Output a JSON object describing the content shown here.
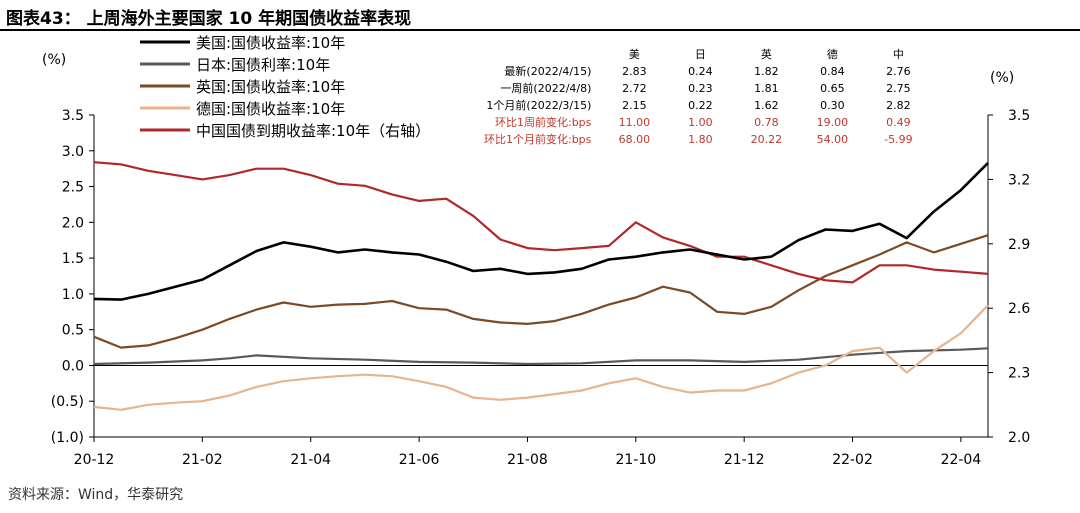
{
  "title": "图表43：  上周海外主要国家 10 年期国债收益率表现",
  "source": "资料来源：Wind，华泰研究",
  "colors": {
    "us": "#000000",
    "jp": "#595959",
    "uk": "#7b4a26",
    "de": "#e8b48d",
    "cn": "#b0282a"
  },
  "table": {
    "headers": [
      "",
      "美",
      "日",
      "英",
      "德",
      "中"
    ],
    "rows": [
      {
        "label": "最新(2022/4/15)",
        "values": [
          "2.83",
          "0.24",
          "1.82",
          "0.84",
          "2.76"
        ],
        "red": false
      },
      {
        "label": "一周前(2022/4/8)",
        "values": [
          "2.72",
          "0.23",
          "1.81",
          "0.65",
          "2.75"
        ],
        "red": false
      },
      {
        "label": "1个月前(2022/3/15)",
        "values": [
          "2.15",
          "0.22",
          "1.62",
          "0.30",
          "2.82"
        ],
        "red": false
      },
      {
        "label": "环比1周前变化:bps",
        "values": [
          "11.00",
          "1.00",
          "0.78",
          "19.00",
          "0.49"
        ],
        "red": true
      },
      {
        "label": "环比1个月前变化:bps",
        "values": [
          "68.00",
          "1.80",
          "20.22",
          "54.00",
          "-5.99"
        ],
        "red": true
      }
    ]
  },
  "chart_data": {
    "type": "line",
    "left_axis": {
      "unit_label": "(%)",
      "ticks": [
        "3.5",
        "3.0",
        "2.5",
        "2.0",
        "1.5",
        "1.0",
        "0.5",
        "0.0",
        "(0.5)",
        "(1.0)"
      ],
      "ylim": [
        -1.0,
        3.5
      ]
    },
    "right_axis": {
      "unit_label": "(%)",
      "ticks": [
        "3.5",
        "3.2",
        "2.9",
        "2.6",
        "2.3",
        "2.0"
      ],
      "ylim": [
        2.0,
        3.5
      ]
    },
    "x_ticks": [
      "20-12",
      "21-02",
      "21-04",
      "21-06",
      "21-08",
      "21-10",
      "21-12",
      "22-02",
      "22-04"
    ],
    "x_range": [
      0,
      16.5
    ],
    "series": [
      {
        "name": "美国:国债收益率:10年",
        "key": "us",
        "axis": "left",
        "x": [
          0,
          0.5,
          1,
          1.5,
          2,
          2.5,
          3,
          3.5,
          4,
          4.5,
          5,
          5.5,
          6,
          6.5,
          7,
          7.5,
          8,
          8.5,
          9,
          9.5,
          10,
          10.5,
          11,
          11.5,
          12,
          12.5,
          13,
          13.5,
          14,
          14.5,
          15,
          15.5,
          16,
          16.5
        ],
        "values": [
          0.93,
          0.92,
          1.0,
          1.1,
          1.2,
          1.4,
          1.6,
          1.72,
          1.66,
          1.58,
          1.62,
          1.58,
          1.55,
          1.45,
          1.32,
          1.35,
          1.28,
          1.3,
          1.35,
          1.48,
          1.52,
          1.58,
          1.62,
          1.55,
          1.48,
          1.52,
          1.75,
          1.9,
          1.88,
          1.98,
          1.78,
          2.15,
          2.45,
          2.83
        ]
      },
      {
        "name": "日本:国债利率:10年",
        "key": "jp",
        "axis": "left",
        "x": [
          0,
          1,
          2,
          2.5,
          3,
          4,
          5,
          6,
          7,
          8,
          9,
          10,
          11,
          12,
          13,
          14,
          15,
          16,
          16.5
        ],
        "values": [
          0.02,
          0.04,
          0.07,
          0.1,
          0.14,
          0.1,
          0.08,
          0.05,
          0.04,
          0.02,
          0.03,
          0.07,
          0.07,
          0.05,
          0.08,
          0.15,
          0.2,
          0.22,
          0.24
        ]
      },
      {
        "name": "英国:国债收益率:10年",
        "key": "uk",
        "axis": "left",
        "x": [
          0,
          0.5,
          1,
          1.5,
          2,
          2.5,
          3,
          3.5,
          4,
          4.5,
          5,
          5.5,
          6,
          6.5,
          7,
          7.5,
          8,
          8.5,
          9,
          9.5,
          10,
          10.5,
          11,
          11.5,
          12,
          12.5,
          13,
          13.5,
          14,
          14.5,
          15,
          15.5,
          16,
          16.5
        ],
        "values": [
          0.4,
          0.25,
          0.28,
          0.38,
          0.5,
          0.65,
          0.78,
          0.88,
          0.82,
          0.85,
          0.86,
          0.9,
          0.8,
          0.78,
          0.65,
          0.6,
          0.58,
          0.62,
          0.72,
          0.85,
          0.95,
          1.1,
          1.02,
          0.75,
          0.72,
          0.82,
          1.05,
          1.25,
          1.4,
          1.55,
          1.72,
          1.58,
          1.7,
          1.82
        ]
      },
      {
        "name": "德国:国债收益率:10年",
        "key": "de",
        "axis": "left",
        "x": [
          0,
          0.5,
          1,
          1.5,
          2,
          2.5,
          3,
          3.5,
          4,
          4.5,
          5,
          5.5,
          6,
          6.5,
          7,
          7.5,
          8,
          8.5,
          9,
          9.5,
          10,
          10.5,
          11,
          11.5,
          12,
          12.5,
          13,
          13.5,
          14,
          14.5,
          15,
          15.5,
          16,
          16.5
        ],
        "values": [
          -0.58,
          -0.62,
          -0.55,
          -0.52,
          -0.5,
          -0.42,
          -0.3,
          -0.22,
          -0.18,
          -0.15,
          -0.13,
          -0.15,
          -0.22,
          -0.3,
          -0.45,
          -0.48,
          -0.45,
          -0.4,
          -0.35,
          -0.25,
          -0.18,
          -0.3,
          -0.38,
          -0.35,
          -0.35,
          -0.25,
          -0.1,
          0.0,
          0.2,
          0.25,
          -0.1,
          0.2,
          0.45,
          0.84
        ]
      },
      {
        "name": "中国国债到期收益率:10年（右轴）",
        "key": "cn",
        "axis": "right",
        "x": [
          0,
          0.5,
          1,
          1.5,
          2,
          2.5,
          3,
          3.5,
          4,
          4.5,
          5,
          5.5,
          6,
          6.5,
          7,
          7.5,
          8,
          8.5,
          9,
          9.5,
          10,
          10.5,
          11,
          11.5,
          12,
          12.5,
          13,
          13.5,
          14,
          14.5,
          15,
          15.5,
          16,
          16.5
        ],
        "values": [
          3.28,
          3.27,
          3.24,
          3.22,
          3.2,
          3.22,
          3.25,
          3.25,
          3.22,
          3.18,
          3.17,
          3.13,
          3.1,
          3.11,
          3.03,
          2.92,
          2.88,
          2.87,
          2.88,
          2.89,
          3.0,
          2.93,
          2.89,
          2.84,
          2.84,
          2.8,
          2.76,
          2.73,
          2.72,
          2.8,
          2.8,
          2.78,
          2.77,
          2.76
        ]
      }
    ]
  }
}
